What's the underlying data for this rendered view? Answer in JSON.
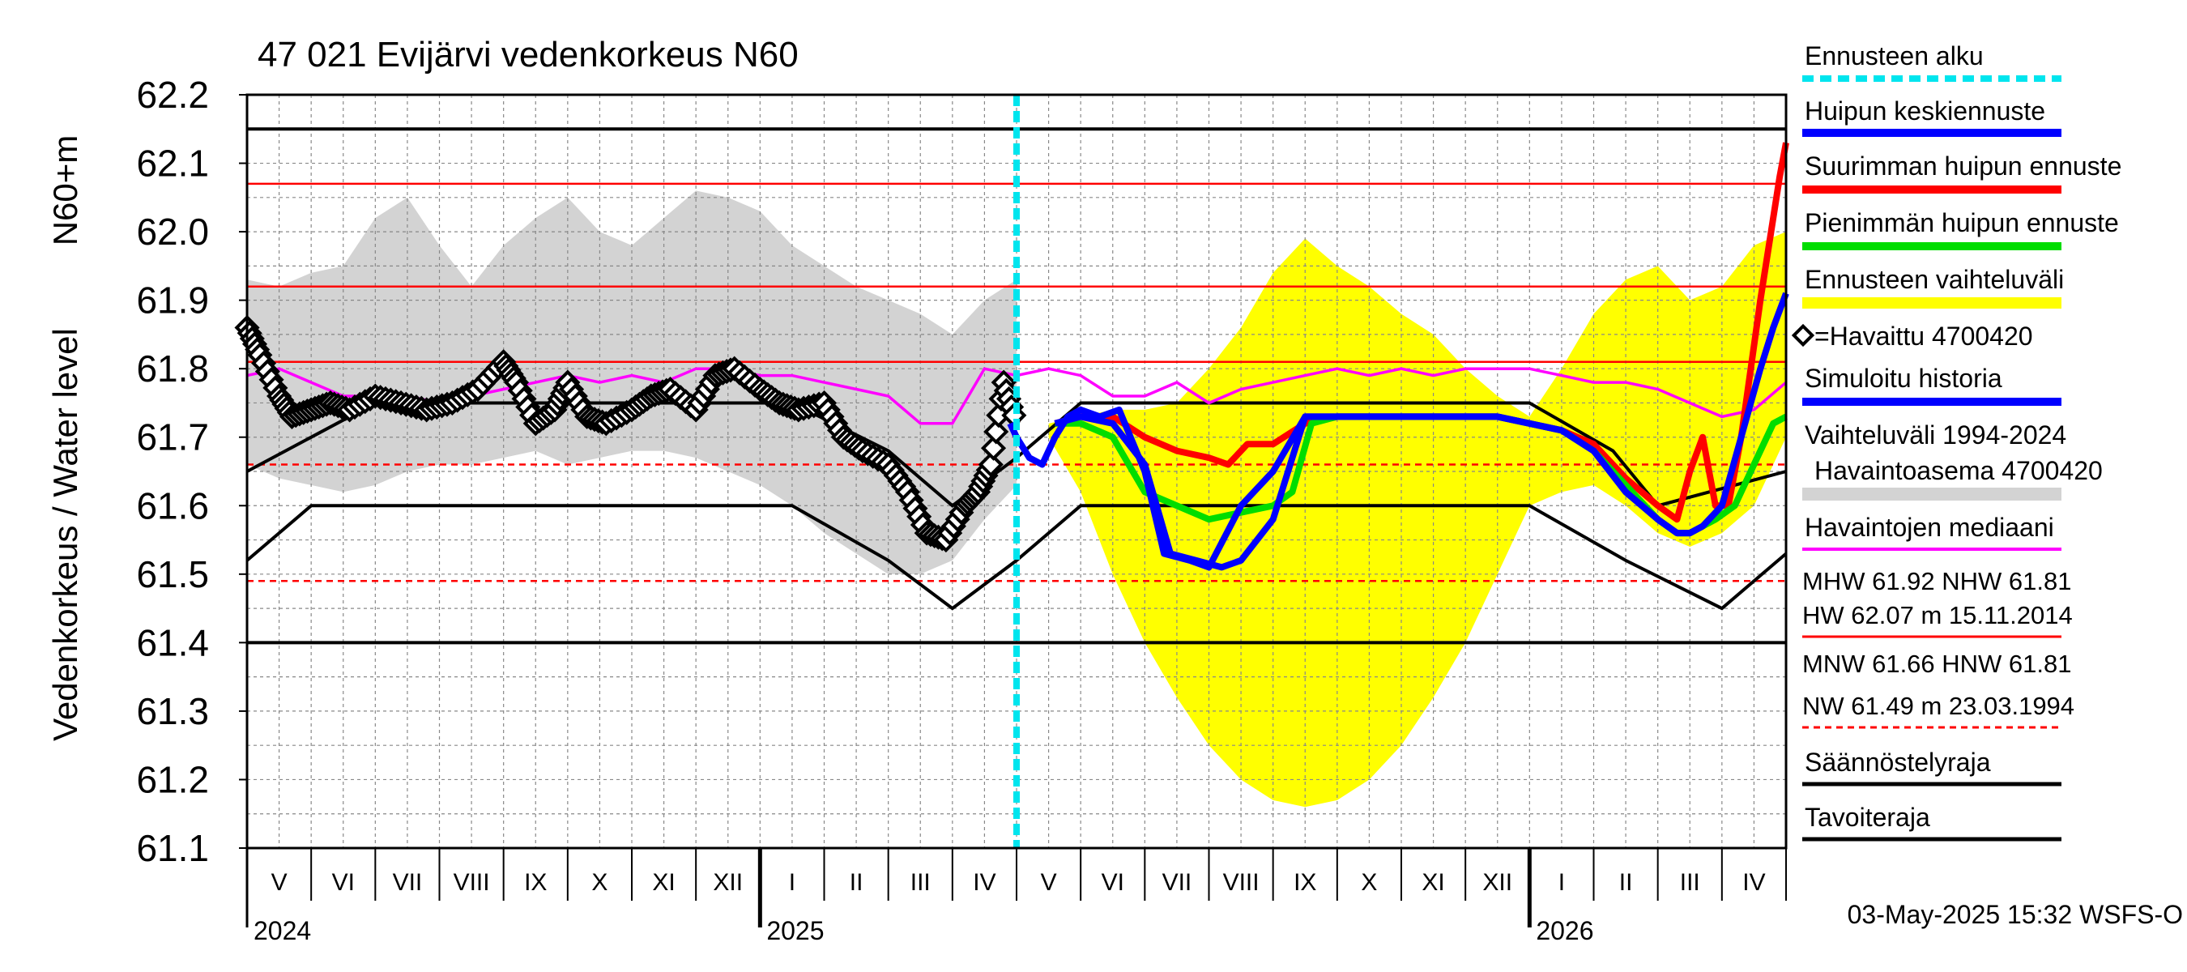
{
  "chart_data": {
    "type": "line",
    "title": "47 021 Evijärvi vedenkorkeus N60",
    "ylabel_left": "Vedenkorkeus / Water level",
    "ylabel_right": "N60+m",
    "ylim": [
      61.1,
      62.2
    ],
    "yticks": [
      "62.2",
      "62.1",
      "62.0",
      "61.9",
      "61.8",
      "61.7",
      "61.6",
      "61.5",
      "61.4",
      "61.3",
      "61.2",
      "61.1"
    ],
    "x_range": [
      0,
      24
    ],
    "month_labels": [
      "V",
      "VI",
      "VII",
      "VIII",
      "IX",
      "X",
      "XI",
      "XII",
      "I",
      "II",
      "III",
      "IV",
      "V",
      "VI",
      "VII",
      "VIII",
      "IX",
      "X",
      "XI",
      "XII",
      "I",
      "II",
      "III",
      "IV"
    ],
    "year_labels": [
      {
        "label": "2024",
        "month_index": 0
      },
      {
        "label": "2025",
        "month_index": 8
      },
      {
        "label": "2026",
        "month_index": 20
      }
    ],
    "forecast_start_month": 12.0,
    "horizontal_lines": [
      {
        "name": "black-top",
        "value": 62.15,
        "color": "#000000",
        "style": "solid"
      },
      {
        "name": "HW",
        "value": 62.07,
        "color": "#ff0000",
        "style": "solid"
      },
      {
        "name": "MHW",
        "value": 61.92,
        "color": "#ff0000",
        "style": "solid"
      },
      {
        "name": "NHW",
        "value": 61.81,
        "color": "#ff0000",
        "style": "solid"
      },
      {
        "name": "MNW",
        "value": 61.66,
        "color": "#ff0000",
        "style": "dashed"
      },
      {
        "name": "NW",
        "value": 61.49,
        "color": "#ff0000",
        "style": "dashed"
      },
      {
        "name": "black-bottom",
        "value": 61.4,
        "color": "#000000",
        "style": "solid"
      }
    ],
    "band_1994_2024": {
      "x": [
        0,
        0.5,
        1,
        1.5,
        2,
        2.5,
        3,
        3.5,
        4,
        4.5,
        5,
        5.5,
        6,
        6.5,
        7,
        7.5,
        8,
        8.5,
        9,
        9.5,
        10,
        10.5,
        11,
        11.5,
        12
      ],
      "upper": [
        61.93,
        61.92,
        61.94,
        61.95,
        62.02,
        62.05,
        61.98,
        61.92,
        61.98,
        62.02,
        62.05,
        62.0,
        61.98,
        62.02,
        62.06,
        62.05,
        62.03,
        61.98,
        61.95,
        61.92,
        61.9,
        61.88,
        61.85,
        61.9,
        61.93
      ],
      "lower": [
        61.66,
        61.64,
        61.63,
        61.62,
        61.63,
        61.65,
        61.66,
        61.66,
        61.67,
        61.68,
        61.66,
        61.67,
        61.68,
        61.68,
        61.67,
        61.65,
        61.63,
        61.6,
        61.56,
        61.53,
        61.5,
        61.5,
        61.52,
        61.58,
        61.63
      ]
    },
    "forecast_range": {
      "x": [
        12.5,
        13,
        13.5,
        14,
        14.5,
        15,
        15.5,
        16,
        16.5,
        17,
        17.5,
        18,
        18.5,
        19,
        19.5,
        20,
        20.5,
        21,
        21.5,
        22,
        22.5,
        23,
        23.5,
        24
      ],
      "upper": [
        61.72,
        61.73,
        61.74,
        61.74,
        61.75,
        61.8,
        61.86,
        61.94,
        61.99,
        61.95,
        61.92,
        61.88,
        61.85,
        61.8,
        61.76,
        61.73,
        61.8,
        61.88,
        61.93,
        61.95,
        61.9,
        61.92,
        61.98,
        62.0
      ],
      "lower": [
        61.7,
        61.62,
        61.5,
        61.4,
        61.32,
        61.25,
        61.2,
        61.17,
        61.16,
        61.17,
        61.2,
        61.25,
        61.32,
        61.4,
        61.5,
        61.6,
        61.62,
        61.63,
        61.6,
        61.56,
        61.54,
        61.56,
        61.6,
        61.7
      ]
    },
    "observed_4700420": {
      "x": [
        0,
        0.2,
        0.5,
        0.7,
        1.0,
        1.3,
        1.6,
        2.0,
        2.4,
        2.8,
        3.2,
        3.6,
        4.0,
        4.2,
        4.5,
        4.8,
        5.0,
        5.3,
        5.6,
        6.0,
        6.3,
        6.6,
        7.0,
        7.3,
        7.6,
        8.0,
        8.3,
        8.6,
        9.0,
        9.3,
        9.6,
        10.0,
        10.3,
        10.6,
        10.9,
        11.2,
        11.4,
        11.6,
        11.8,
        12.0
      ],
      "y": [
        61.86,
        61.82,
        61.76,
        61.73,
        61.74,
        61.75,
        61.74,
        61.76,
        61.75,
        61.74,
        61.75,
        61.77,
        61.81,
        61.78,
        61.72,
        61.74,
        61.78,
        61.73,
        61.72,
        61.74,
        61.76,
        61.77,
        61.74,
        61.79,
        61.8,
        61.77,
        61.75,
        61.74,
        61.75,
        61.7,
        61.68,
        61.66,
        61.62,
        61.56,
        61.55,
        61.6,
        61.62,
        61.66,
        61.78,
        61.72
      ]
    },
    "simulated_history": {
      "x": [
        11.9,
        12.0,
        12.2,
        12.4,
        12.6,
        12.8,
        13.0,
        13.3,
        13.6,
        14.0,
        14.3,
        14.7,
        15.0,
        15.5,
        16.0,
        16.5,
        17.0,
        17.5,
        18.0,
        18.5,
        19.0,
        19.5,
        20.0,
        20.5,
        21.0,
        21.5,
        22.0,
        22.3,
        22.5,
        22.7,
        23.0,
        23.3,
        23.6,
        23.8,
        24.0
      ],
      "y": [
        61.72,
        61.7,
        61.67,
        61.66,
        61.7,
        61.73,
        61.74,
        61.73,
        61.74,
        61.65,
        61.53,
        61.52,
        61.51,
        61.6,
        61.65,
        61.73,
        61.73,
        61.73,
        61.73,
        61.73,
        61.73,
        61.73,
        61.72,
        61.71,
        61.68,
        61.62,
        61.58,
        61.56,
        61.56,
        61.57,
        61.6,
        61.7,
        61.8,
        61.86,
        61.91
      ]
    },
    "forecast_peak_mean": {
      "x": [
        12.6,
        13.0,
        13.5,
        14.0,
        14.4,
        14.8,
        15.2,
        15.5,
        16.0,
        16.5,
        17.0,
        17.5,
        18.0,
        18.5,
        19.0,
        19.5,
        20.0,
        20.5,
        21.0,
        21.5,
        22.0,
        22.3,
        22.5,
        22.7
      ],
      "y": [
        61.72,
        61.73,
        61.72,
        61.66,
        61.53,
        61.52,
        61.51,
        61.52,
        61.58,
        61.73,
        61.73,
        61.73,
        61.73,
        61.73,
        61.73,
        61.73,
        61.72,
        61.71,
        61.68,
        61.62,
        61.58,
        61.56,
        61.56,
        61.57
      ]
    },
    "forecast_peak_max": {
      "x": [
        12.6,
        13.0,
        13.5,
        14.0,
        14.5,
        15.0,
        15.3,
        15.6,
        16.0,
        16.5,
        17.0,
        17.5,
        18.0,
        18.5,
        19.0,
        19.5,
        20.0,
        20.5,
        21.0,
        21.5,
        22.0,
        22.3,
        22.5,
        22.7,
        22.9,
        23.1,
        23.3,
        23.6,
        23.9,
        24.0
      ],
      "y": [
        61.72,
        61.73,
        61.73,
        61.7,
        61.68,
        61.67,
        61.66,
        61.69,
        61.69,
        61.72,
        61.73,
        61.73,
        61.73,
        61.73,
        61.73,
        61.73,
        61.72,
        61.71,
        61.69,
        61.64,
        61.6,
        61.58,
        61.65,
        61.7,
        61.6,
        61.6,
        61.7,
        61.9,
        62.08,
        62.13
      ]
    },
    "forecast_peak_min": {
      "x": [
        12.6,
        13.0,
        13.5,
        14.0,
        14.5,
        15.0,
        15.5,
        16.0,
        16.3,
        16.6,
        17.0,
        17.5,
        18.0,
        18.5,
        19.0,
        19.5,
        20.0,
        20.5,
        21.0,
        21.5,
        22.0,
        22.3,
        22.5,
        22.7,
        22.9,
        23.2,
        23.5,
        23.8,
        24.0
      ],
      "y": [
        61.72,
        61.72,
        61.7,
        61.62,
        61.6,
        61.58,
        61.59,
        61.6,
        61.62,
        61.72,
        61.73,
        61.73,
        61.73,
        61.73,
        61.73,
        61.73,
        61.72,
        61.71,
        61.68,
        61.63,
        61.58,
        61.56,
        61.56,
        61.57,
        61.58,
        61.6,
        61.66,
        61.72,
        61.73
      ]
    },
    "median_observed": {
      "x": [
        0,
        0.5,
        1,
        1.5,
        2,
        2.5,
        3,
        3.5,
        4,
        4.5,
        5,
        5.5,
        6,
        6.5,
        7,
        7.5,
        8,
        8.5,
        9,
        9.5,
        10,
        10.5,
        11,
        11.5,
        12,
        12.5,
        13,
        13.5,
        14,
        14.5,
        15,
        15.5,
        16,
        16.5,
        17,
        17.5,
        18,
        18.5,
        19,
        19.5,
        20,
        20.5,
        21,
        21.5,
        22,
        22.5,
        23,
        23.5,
        24
      ],
      "y": [
        61.79,
        61.8,
        61.78,
        61.76,
        61.76,
        61.76,
        61.75,
        61.76,
        61.77,
        61.78,
        61.79,
        61.78,
        61.79,
        61.78,
        61.8,
        61.8,
        61.79,
        61.79,
        61.78,
        61.77,
        61.76,
        61.72,
        61.72,
        61.8,
        61.79,
        61.8,
        61.79,
        61.76,
        61.76,
        61.78,
        61.75,
        61.77,
        61.78,
        61.79,
        61.8,
        61.79,
        61.8,
        61.79,
        61.8,
        61.8,
        61.8,
        61.79,
        61.78,
        61.78,
        61.77,
        61.75,
        61.73,
        61.74,
        61.78
      ]
    },
    "regulation_limit": {
      "segments": [
        {
          "x": [
            0,
            1,
            8.5,
            10,
            11,
            12,
            13,
            20,
            21.5,
            23,
            24
          ],
          "y": [
            61.52,
            61.6,
            61.6,
            61.52,
            61.45,
            61.52,
            61.6,
            61.6,
            61.52,
            61.45,
            61.53
          ]
        }
      ]
    },
    "target_limit": {
      "segments": [
        {
          "x": [
            0,
            2,
            8.5,
            10,
            11,
            12,
            13,
            20,
            21.3,
            22,
            24
          ],
          "y": [
            61.65,
            61.75,
            61.75,
            61.68,
            61.6,
            61.67,
            61.75,
            61.75,
            61.68,
            61.6,
            61.65
          ]
        }
      ]
    },
    "legend": {
      "forecast_start": "Ennusteen alku",
      "peak_mean": "Huipun keskiennuste",
      "peak_max": "Suurimman huipun ennuste",
      "peak_min": "Pienimmän huipun ennuste",
      "forecast_range": "Ennusteen vaihteluväli",
      "observed": "=Havaittu 4700420",
      "simulated": "Simuloitu historia",
      "band_line1": "Vaihteluväli 1994-2024",
      "band_line2": "Havaintoasema 4700420",
      "median": "Havaintojen mediaani",
      "stats1": "MHW  61.92 NHW  61.81",
      "stats2": "HW  62.07 m 15.11.2014",
      "stats3": "MNW  61.66 HNW  61.81",
      "stats4": "NW  61.49 m 23.03.1994",
      "regulation": "Säännöstelyraja",
      "target": "Tavoiteraja"
    },
    "footer": "03-May-2025 15:32 WSFS-O"
  },
  "colors": {
    "band": "#d3d3d3",
    "forecast_range": "#ffff00",
    "observed": "#000000",
    "simulated": "#0000ff",
    "peak_mean": "#0000ff",
    "peak_max": "#ff0000",
    "peak_min": "#00dd00",
    "median": "#ff00ff",
    "forecast_start": "#00e5ee",
    "red_lines": "#ff0000",
    "black": "#000000"
  }
}
